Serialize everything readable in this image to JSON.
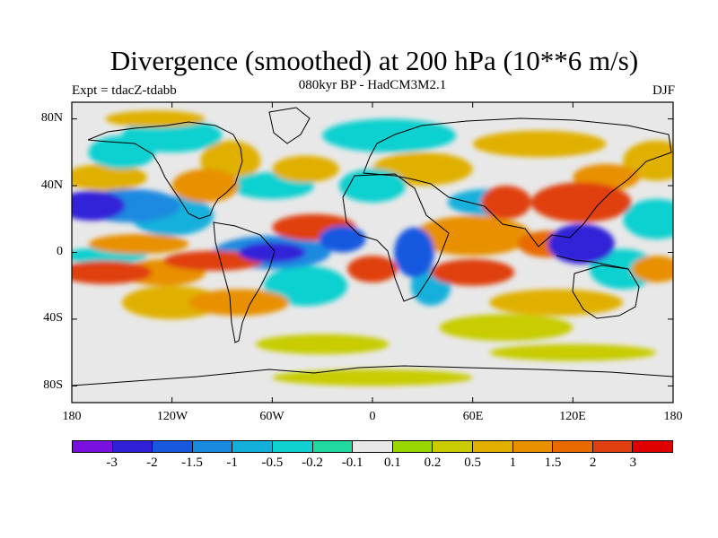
{
  "title": "Divergence (smoothed) at 200 hPa (10**6 m/s)",
  "subtitle": "080kyr BP - HadCM3M2.1",
  "experiment": "Expt = tdacZ-tdabb",
  "season": "DJF",
  "lat_ticks": [
    "80N",
    "40N",
    "0",
    "40S",
    "80S"
  ],
  "lon_ticks": [
    "180",
    "120W",
    "60W",
    "0",
    "60E",
    "120E",
    "180"
  ],
  "colorbar": {
    "colors": [
      "#7a10e0",
      "#3020d8",
      "#1858e0",
      "#1a8ae0",
      "#14b0dc",
      "#10d0d0",
      "#20d8a0",
      "#e8e8e8",
      "#98d800",
      "#c8cc00",
      "#e0b000",
      "#e89000",
      "#e86a00",
      "#e04010",
      "#e00000"
    ],
    "labels": [
      "-3",
      "-2",
      "-1.5",
      "-1",
      "-0.5",
      "-0.2",
      "-0.1",
      "0.1",
      "0.2",
      "0.5",
      "1",
      "1.5",
      "2",
      "3"
    ]
  },
  "field_blobs": [
    {
      "lon": -168,
      "lat": 28,
      "rx": 20,
      "ry": 9,
      "value": -3
    },
    {
      "lon": -145,
      "lat": 28,
      "rx": 30,
      "ry": 10,
      "value": -1.5
    },
    {
      "lon": -120,
      "lat": 22,
      "rx": 25,
      "ry": 12,
      "value": -1
    },
    {
      "lon": -160,
      "lat": 45,
      "rx": 25,
      "ry": 8,
      "value": 0.5
    },
    {
      "lon": -100,
      "lat": 40,
      "rx": 20,
      "ry": 10,
      "value": 1
    },
    {
      "lon": -85,
      "lat": 55,
      "rx": 18,
      "ry": 12,
      "value": 0.5
    },
    {
      "lon": -60,
      "lat": 40,
      "rx": 25,
      "ry": 8,
      "value": -0.5
    },
    {
      "lon": -40,
      "lat": 50,
      "rx": 20,
      "ry": 8,
      "value": 0.5
    },
    {
      "lon": -160,
      "lat": -12,
      "rx": 28,
      "ry": 7,
      "value": 2
    },
    {
      "lon": -125,
      "lat": -12,
      "rx": 25,
      "ry": 8,
      "value": 1
    },
    {
      "lon": -95,
      "lat": -5,
      "rx": 30,
      "ry": 6,
      "value": 2
    },
    {
      "lon": -140,
      "lat": 5,
      "rx": 30,
      "ry": 6,
      "value": 1
    },
    {
      "lon": -160,
      "lat": -2,
      "rx": 25,
      "ry": 5,
      "value": -0.5
    },
    {
      "lon": -60,
      "lat": 0,
      "rx": 35,
      "ry": 10,
      "value": -1.5
    },
    {
      "lon": -60,
      "lat": 0,
      "rx": 20,
      "ry": 6,
      "value": -3
    },
    {
      "lon": -35,
      "lat": 15,
      "rx": 25,
      "ry": 8,
      "value": 2
    },
    {
      "lon": -18,
      "lat": 8,
      "rx": 14,
      "ry": 8,
      "value": -2
    },
    {
      "lon": -40,
      "lat": -20,
      "rx": 25,
      "ry": 12,
      "value": -0.5
    },
    {
      "lon": -120,
      "lat": -30,
      "rx": 30,
      "ry": 10,
      "value": 0.5
    },
    {
      "lon": -80,
      "lat": -30,
      "rx": 30,
      "ry": 8,
      "value": 1
    },
    {
      "lon": 25,
      "lat": 0,
      "rx": 12,
      "ry": 15,
      "value": -2
    },
    {
      "lon": 35,
      "lat": -20,
      "rx": 12,
      "ry": 12,
      "value": -1
    },
    {
      "lon": 0,
      "lat": -10,
      "rx": 15,
      "ry": 8,
      "value": 2
    },
    {
      "lon": 60,
      "lat": 10,
      "rx": 35,
      "ry": 12,
      "value": 1
    },
    {
      "lon": 60,
      "lat": -12,
      "rx": 25,
      "ry": 8,
      "value": 2
    },
    {
      "lon": 80,
      "lat": 30,
      "rx": 15,
      "ry": 10,
      "value": 2
    },
    {
      "lon": 70,
      "lat": 30,
      "rx": 25,
      "ry": 8,
      "value": -1
    },
    {
      "lon": 125,
      "lat": 30,
      "rx": 30,
      "ry": 12,
      "value": 2
    },
    {
      "lon": 140,
      "lat": 45,
      "rx": 20,
      "ry": 8,
      "value": 1
    },
    {
      "lon": 125,
      "lat": 5,
      "rx": 20,
      "ry": 12,
      "value": -3
    },
    {
      "lon": 105,
      "lat": 5,
      "rx": 18,
      "ry": 8,
      "value": 1.5
    },
    {
      "lon": 150,
      "lat": -10,
      "rx": 20,
      "ry": 12,
      "value": -0.5
    },
    {
      "lon": 170,
      "lat": 20,
      "rx": 20,
      "ry": 12,
      "value": -0.5
    },
    {
      "lon": 170,
      "lat": -10,
      "rx": 15,
      "ry": 8,
      "value": 1
    },
    {
      "lon": 110,
      "lat": -30,
      "rx": 40,
      "ry": 8,
      "value": 0.5
    },
    {
      "lon": 80,
      "lat": -45,
      "rx": 40,
      "ry": 8,
      "value": 0.2
    },
    {
      "lon": -120,
      "lat": 70,
      "rx": 30,
      "ry": 10,
      "value": -0.5
    },
    {
      "lon": -130,
      "lat": 80,
      "rx": 30,
      "ry": 5,
      "value": 0.5
    },
    {
      "lon": 10,
      "lat": 70,
      "rx": 40,
      "ry": 10,
      "value": -0.5
    },
    {
      "lon": 100,
      "lat": 65,
      "rx": 40,
      "ry": 8,
      "value": 0.5
    },
    {
      "lon": 30,
      "lat": 50,
      "rx": 30,
      "ry": 10,
      "value": 0.5
    },
    {
      "lon": 0,
      "lat": 40,
      "rx": 20,
      "ry": 10,
      "value": -0.5
    },
    {
      "lon": -150,
      "lat": 60,
      "rx": 20,
      "ry": 10,
      "value": -0.5
    },
    {
      "lon": 170,
      "lat": 55,
      "rx": 20,
      "ry": 12,
      "value": 0.5
    },
    {
      "lon": -30,
      "lat": -55,
      "rx": 40,
      "ry": 6,
      "value": 0.2
    },
    {
      "lon": 120,
      "lat": -60,
      "rx": 50,
      "ry": 5,
      "value": 0.2
    },
    {
      "lon": 0,
      "lat": -75,
      "rx": 60,
      "ry": 5,
      "value": 0.2
    }
  ]
}
